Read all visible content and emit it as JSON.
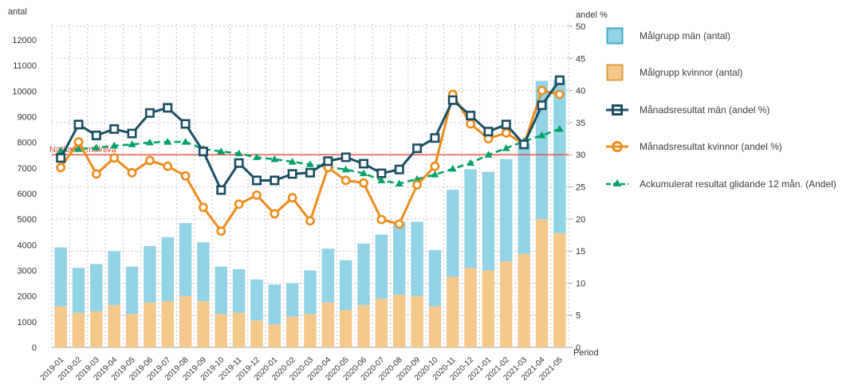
{
  "chart_data": {
    "type": "bar+line combo (stacked bars on left axis, lines on right axis)",
    "title": "",
    "categories": [
      "2019-01",
      "2019-02",
      "2019-03",
      "2019-04",
      "2019-05",
      "2019-06",
      "2019-07",
      "2019-08",
      "2019-09",
      "2019-10",
      "2019-11",
      "2019-12",
      "2020-01",
      "2020-02",
      "2020-03",
      "2020-04",
      "2020-05",
      "2020-06",
      "2020-07",
      "2020-08",
      "2020-09",
      "2020-10",
      "2020-11",
      "2020-12",
      "2021-01",
      "2021-02",
      "2021-03",
      "2021-04",
      "2021-05"
    ],
    "axes": {
      "left": {
        "title": "antal",
        "min": 0,
        "max": 12000,
        "step": 1000
      },
      "right": {
        "title": "andel %",
        "min": 0,
        "max": 50,
        "step": 5
      },
      "x": {
        "title": "Period"
      },
      "grid": true
    },
    "target_line": {
      "label": "Nationell målnivå",
      "axis": "right",
      "value": 30,
      "color": "#e8483a"
    },
    "series": [
      {
        "name": "Målgrupp män (antal)",
        "type": "bar",
        "stack_position": "top",
        "axis": "left",
        "color": "#92d3e7",
        "border_color": "#44a7c8",
        "values": [
          2300,
          1750,
          1850,
          2100,
          1850,
          2200,
          2500,
          2850,
          2300,
          1850,
          1700,
          1600,
          1550,
          1300,
          1700,
          2100,
          1950,
          2400,
          2500,
          2850,
          2900,
          2200,
          3400,
          3850,
          3850,
          4000,
          4300,
          5400,
          6000
        ]
      },
      {
        "name": "Målgrupp kvinnor (antal)",
        "type": "bar",
        "stack_position": "bottom",
        "axis": "left",
        "color": "#f5c98c",
        "border_color": "#dd9b3f",
        "values": [
          1600,
          1350,
          1400,
          1650,
          1300,
          1750,
          1800,
          2000,
          1800,
          1300,
          1350,
          1050,
          900,
          1200,
          1300,
          1750,
          1450,
          1650,
          1900,
          2050,
          2000,
          1600,
          2750,
          3100,
          3000,
          3350,
          3650,
          5000,
          4450
        ]
      },
      {
        "name": "Månadsresultat män (andel %)",
        "type": "line",
        "marker": "square",
        "axis": "right",
        "color": "#1a4f63",
        "values": [
          29.5,
          34.7,
          33.0,
          34.0,
          33.3,
          36.5,
          37.3,
          34.8,
          30.5,
          24.5,
          28.7,
          26.0,
          26.0,
          27.0,
          27.2,
          29.0,
          29.6,
          28.6,
          27.1,
          27.7,
          31.0,
          32.6,
          38.5,
          36.1,
          33.6,
          34.7,
          31.6,
          37.7,
          41.6
        ]
      },
      {
        "name": "Månadsresultat kvinnor (andel %)",
        "type": "line",
        "marker": "circle",
        "axis": "right",
        "color": "#ef8c1d",
        "values": [
          28.0,
          32.0,
          27.0,
          29.5,
          27.2,
          29.1,
          28.2,
          26.7,
          21.8,
          18.1,
          22.3,
          23.7,
          20.8,
          23.3,
          19.7,
          28.0,
          26.0,
          25.6,
          19.9,
          19.2,
          25.3,
          28.2,
          39.4,
          34.8,
          32.5,
          33.4,
          31.6,
          40.0,
          39.4
        ]
      },
      {
        "name": "Ackumulerat resultat glidande 12 mån. (Andel)",
        "type": "line",
        "marker": "triangle",
        "dashed": true,
        "axis": "right",
        "color": "#00a266",
        "values": [
          30.6,
          30.9,
          31.1,
          31.4,
          31.6,
          31.9,
          32.0,
          32.0,
          30.9,
          30.5,
          30.2,
          29.6,
          29.3,
          28.9,
          28.5,
          28.1,
          27.7,
          27.1,
          26.0,
          25.5,
          26.2,
          26.9,
          27.8,
          28.7,
          30.0,
          31.0,
          32.1,
          33.0,
          34.0
        ]
      }
    ],
    "legend_position": "right"
  },
  "colors": {
    "grid": "#c4c4c4",
    "axis_text": "#333333",
    "baseline": "#a0a0a0",
    "target_red": "#e8483a"
  }
}
